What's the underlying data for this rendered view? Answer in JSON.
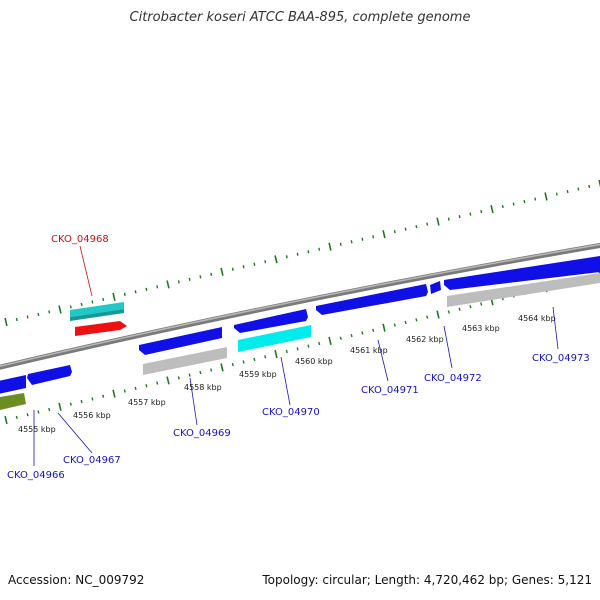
{
  "title": "Citrobacter koseri ATCC BAA-895, complete genome",
  "footer": {
    "accession": "Accession: NC_009792",
    "summary": "Topology: circular; Length: 4,720,462 bp; Genes: 5,121"
  },
  "colors": {
    "backbone": "#8a8a8a",
    "tick": "#1f7a1f",
    "cds": "#1010e6",
    "cyan": "#00e0e0",
    "teal": "#20c8c8",
    "red": "#ee1111",
    "gray": "#bdbdbd",
    "olive": "#6b8e23",
    "label_blue": "#1515c8",
    "label_red": "#d01010"
  },
  "kbp_labels": [
    {
      "text": "4555 kbp"
    },
    {
      "text": "4556 kbp"
    },
    {
      "text": "4557 kbp"
    },
    {
      "text": "4558 kbp"
    },
    {
      "text": "4559 kbp"
    },
    {
      "text": "4560 kbp"
    },
    {
      "text": "4561 kbp"
    },
    {
      "text": "4562 kbp"
    },
    {
      "text": "4563 kbp"
    },
    {
      "text": "4564 kbp"
    }
  ],
  "gene_labels": [
    {
      "text": "CKO_04966",
      "color": "blue"
    },
    {
      "text": "CKO_04967",
      "color": "blue"
    },
    {
      "text": "CKO_04968",
      "color": "red"
    },
    {
      "text": "CKO_04969",
      "color": "blue"
    },
    {
      "text": "CKO_04970",
      "color": "blue"
    },
    {
      "text": "CKO_04971",
      "color": "blue"
    },
    {
      "text": "CKO_04972",
      "color": "blue"
    },
    {
      "text": "CKO_04973",
      "color": "blue"
    }
  ]
}
